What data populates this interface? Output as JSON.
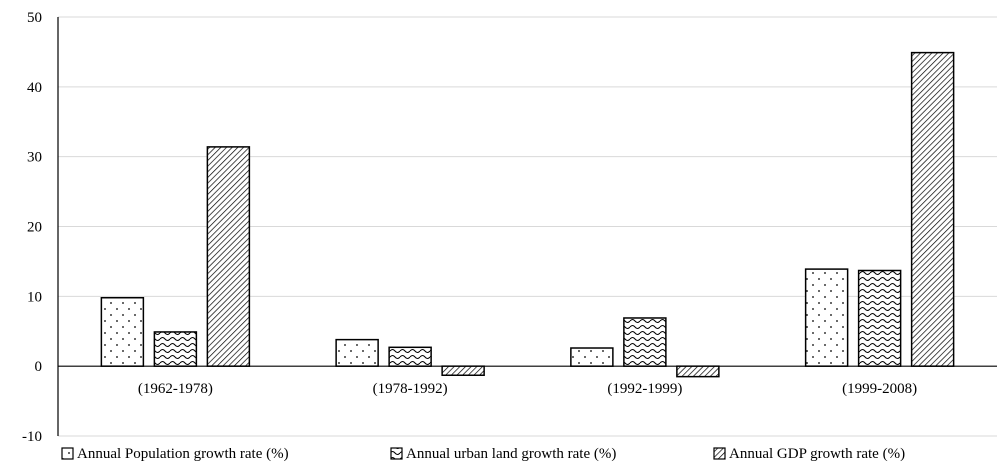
{
  "chart_data": {
    "type": "bar",
    "categories": [
      "(1962-1978)",
      "(1978-1992)",
      "(1992-1999)",
      "(1999-2008)"
    ],
    "series": [
      {
        "name": "Annual Population growth rate (%)",
        "values": [
          9.8,
          3.8,
          2.6,
          13.9
        ],
        "pattern": "dots"
      },
      {
        "name": "Annual urban land growth rate (%)",
        "values": [
          4.9,
          2.7,
          6.9,
          13.7
        ],
        "pattern": "waves"
      },
      {
        "name": "Annual GDP growth rate (%)",
        "values": [
          31.4,
          -1.3,
          -1.5,
          44.9
        ],
        "pattern": "hatch"
      }
    ],
    "ylim": [
      -10,
      50
    ],
    "yticks": [
      -10,
      0,
      10,
      20,
      30,
      40,
      50
    ],
    "grid": true,
    "legend_position": "bottom",
    "title": "",
    "xlabel": "",
    "ylabel": ""
  }
}
